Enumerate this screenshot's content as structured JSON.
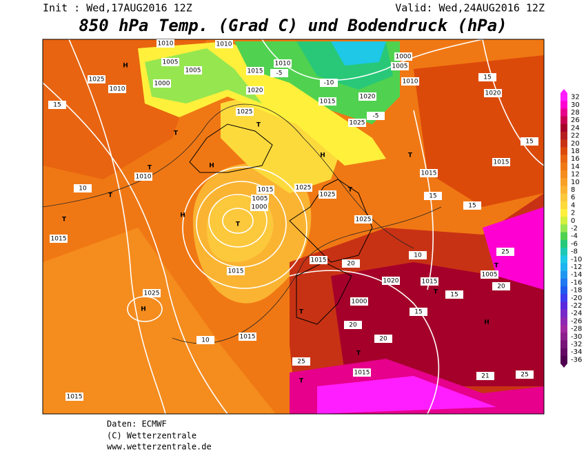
{
  "header": {
    "init": "Init : Wed,17AUG2016 12Z",
    "valid": "Valid: Wed,24AUG2016 12Z",
    "title": "850 hPa Temp. (Grad C) und Bodendruck (hPa)"
  },
  "legend": {
    "ticks": [
      32,
      30,
      28,
      26,
      24,
      22,
      20,
      18,
      16,
      14,
      12,
      10,
      8,
      6,
      4,
      2,
      0,
      -2,
      -4,
      -6,
      -8,
      -10,
      -12,
      -14,
      -16,
      -18,
      -20,
      -22,
      -24,
      -26,
      -28,
      -30,
      -32,
      -34,
      -36
    ],
    "colors": [
      "#ff1eff",
      "#ff00d2",
      "#e6008c",
      "#c80050",
      "#a5002a",
      "#b41e1e",
      "#c83214",
      "#dc4a0a",
      "#e86410",
      "#f07814",
      "#f58c1e",
      "#f8a028",
      "#fab432",
      "#fcc83c",
      "#fdda3c",
      "#fff03c",
      "#d2f03c",
      "#96e650",
      "#50d250",
      "#28c878",
      "#1ec8b4",
      "#1ec8e6",
      "#1eb4f0",
      "#1e96f0",
      "#1e78f0",
      "#1e5af0",
      "#3c3cf0",
      "#5a28dc",
      "#7828c8",
      "#8c28b4",
      "#a028a0",
      "#8c1e8c",
      "#781478",
      "#640a64",
      "#500050"
    ]
  },
  "map": {
    "labels": [
      "H",
      "1010",
      "1005",
      "1000",
      "1005",
      "1010",
      "15",
      "1010",
      "1015",
      "1020",
      "1025",
      "-5",
      "-10",
      "1010",
      "1000",
      "1005",
      "1020",
      "1015",
      "1025",
      "-5",
      "1020",
      "15",
      "1025",
      "1010",
      "H",
      "T",
      "T",
      "T",
      "T",
      "H",
      "15",
      "1010",
      "1015",
      "10",
      "T",
      "1005",
      "1000",
      "T",
      "1015",
      "1025",
      "1025",
      "1025",
      "T",
      "T",
      "1015",
      "15",
      "15",
      "1015",
      "H",
      "1025",
      "1015",
      "20",
      "1020",
      "1015",
      "1000",
      "T",
      "1005",
      "25",
      "20",
      "T",
      "20",
      "25",
      "T",
      "T",
      "1015",
      "H",
      "25",
      "21",
      "15",
      "10",
      "20",
      "1015",
      "T",
      "15",
      "10",
      "1015",
      "1015",
      "H"
    ]
  },
  "footer": {
    "source": "Daten: ECMWF",
    "copyright": "(C) Wetterzentrale",
    "url": "www.wetterzentrale.de"
  }
}
